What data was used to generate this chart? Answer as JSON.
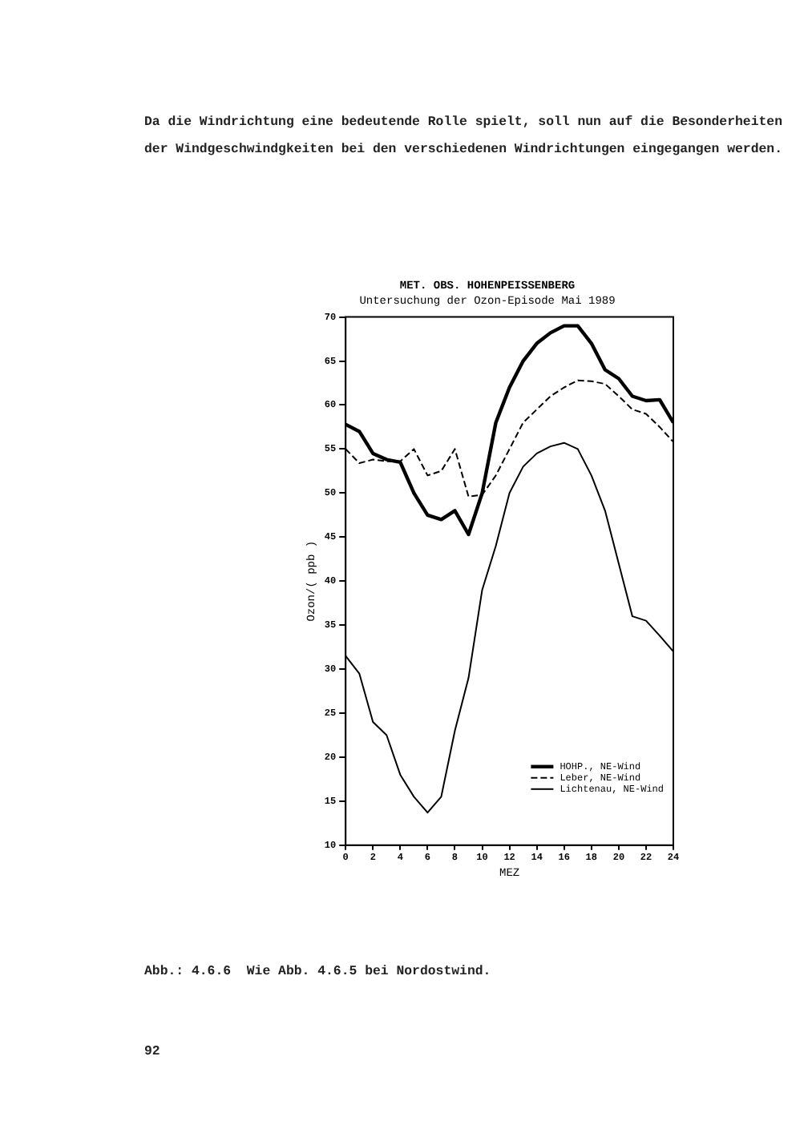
{
  "chart_data": {
    "type": "line",
    "title": "MET. OBS. HOHENPEISSENBERG",
    "subtitle": "Untersuchung der Ozon-Episode Mai 1989",
    "xlabel": "MEZ",
    "ylabel": "Ozon/( ppb )",
    "x": [
      0,
      1,
      2,
      3,
      4,
      5,
      6,
      7,
      8,
      9,
      10,
      11,
      12,
      13,
      14,
      15,
      16,
      17,
      18,
      19,
      20,
      21,
      22,
      23,
      24
    ],
    "series": [
      {
        "name": "HOHP., NE-Wind",
        "color": "#000000",
        "line_style": "solid",
        "values": [
          57.8,
          57,
          54.5,
          53.8,
          53.5,
          50,
          47.5,
          47,
          48,
          45.3,
          50,
          58,
          62,
          65,
          67,
          68.2,
          69,
          69,
          67,
          64,
          63,
          61,
          60.5,
          60.6,
          58
        ]
      },
      {
        "name": "Leber, NE-Wind",
        "color": "#000000",
        "line_style": "dashed",
        "values": [
          55,
          53.4,
          53.8,
          53.6,
          53.6,
          55,
          52,
          52.5,
          55,
          49.6,
          49.8,
          52,
          55,
          58,
          59.5,
          61,
          62,
          62.8,
          62.7,
          62.4,
          61,
          59.5,
          59,
          57.5,
          55.8
        ]
      },
      {
        "name": "Lichtenau, NE-Wind",
        "color": "#000000",
        "line_style": "solid",
        "values": [
          31.5,
          29.5,
          24,
          22.5,
          18,
          15.5,
          13.7,
          15.5,
          23,
          29,
          39,
          44,
          50,
          53,
          54.5,
          55.3,
          55.7,
          55,
          52,
          48,
          42,
          36,
          35.5,
          33.8,
          32
        ]
      }
    ],
    "xlim": [
      0,
      24
    ],
    "xticks": [
      0,
      2,
      4,
      6,
      8,
      10,
      12,
      14,
      16,
      18,
      20,
      22,
      24
    ],
    "ylim": [
      10,
      70
    ],
    "yticks": [
      10,
      15,
      20,
      25,
      30,
      35,
      40,
      45,
      50,
      55,
      60,
      65,
      70
    ],
    "grid": false,
    "legend": "bottom right",
    "marker": "none",
    "annotations": [
      "Da die Windrichtung eine bedeutende Rolle spielt, soll nun auf die Besonderheiten der Windgeschwindgkeiten bei den verschiedenen Windrichtungen eingegangen werden.",
      "Abb.: 4.6.6  Wie Abb. 4.6.5 bei Nordostwind.",
      "92"
    ]
  }
}
